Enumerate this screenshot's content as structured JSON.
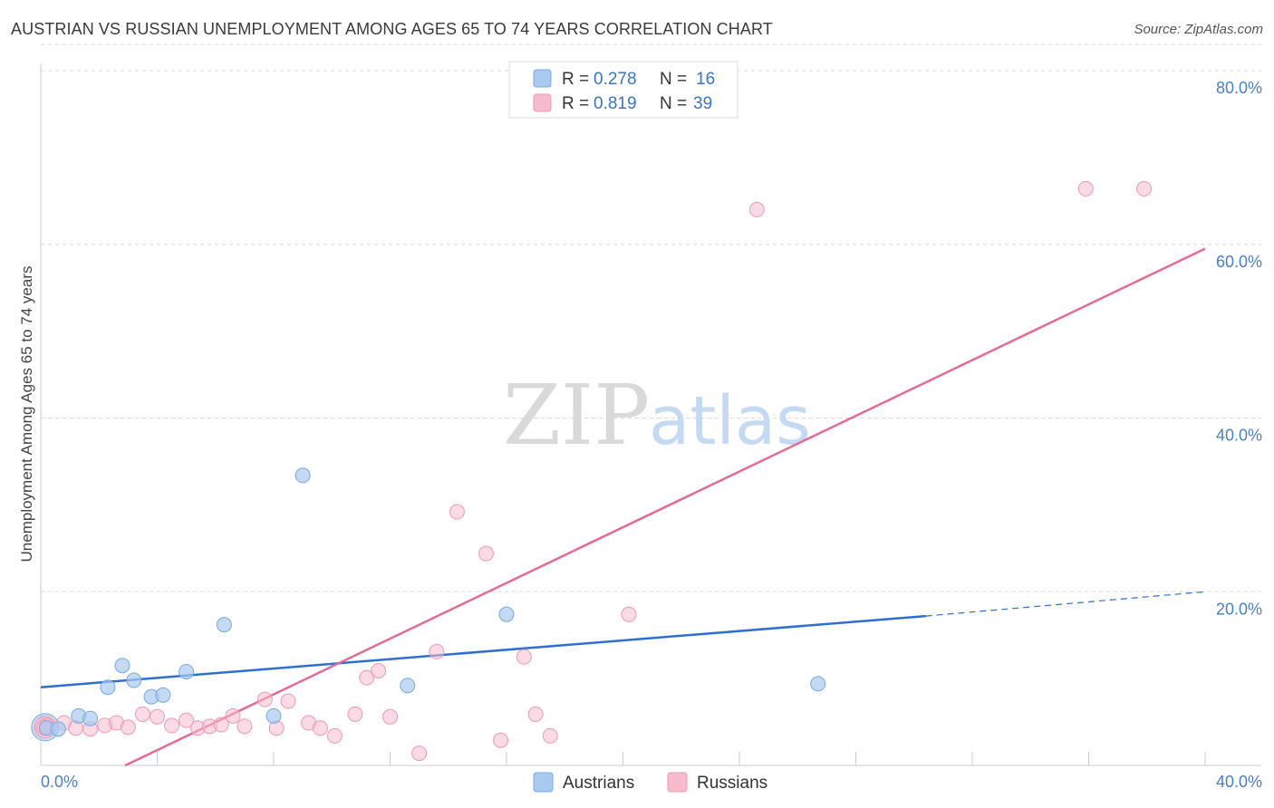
{
  "title": "AUSTRIAN VS RUSSIAN UNEMPLOYMENT AMONG AGES 65 TO 74 YEARS CORRELATION CHART",
  "source": "Source: ZipAtlas.com",
  "watermark": {
    "zip": "ZIP",
    "atlas": "atlas"
  },
  "colors": {
    "austrians_fill": "#a9c9f0",
    "austrians_stroke": "#7aa8e0",
    "austrians_line": "#2f6fce",
    "russians_fill": "#f6bccd",
    "russians_stroke": "#ee99b3",
    "russians_line": "#e56b97",
    "grid": "#d8d8d8",
    "tick_text": "#4a7fc9"
  },
  "legend": {
    "austrians": {
      "r_label": "R =",
      "r_value": "0.278",
      "n_label": "N =",
      "n_value": "16"
    },
    "russians": {
      "r_label": "R =",
      "r_value": "0.819",
      "n_label": "N =",
      "n_value": "39"
    }
  },
  "chart_data": {
    "type": "scatter",
    "ylabel": "Unemployment Among Ages 65 to 74 years",
    "xlabel": "",
    "xlim": [
      0,
      40
    ],
    "ylim": [
      0,
      80
    ],
    "x_tick_labels": [
      "0.0%",
      "40.0%"
    ],
    "y_ticks": [
      {
        "value": 20,
        "label": "20.0%"
      },
      {
        "value": 40,
        "label": "40.0%"
      },
      {
        "value": 60,
        "label": "60.0%"
      },
      {
        "value": 80,
        "label": "80.0%"
      }
    ],
    "grid": "horizontal dashed",
    "series": [
      {
        "name": "Austrians",
        "points": [
          [
            0.2,
            4.3
          ],
          [
            0.6,
            4.2
          ],
          [
            1.3,
            5.7
          ],
          [
            1.7,
            5.4
          ],
          [
            2.3,
            9.0
          ],
          [
            2.8,
            11.5
          ],
          [
            3.2,
            9.8
          ],
          [
            3.8,
            7.9
          ],
          [
            4.2,
            8.1
          ],
          [
            5.0,
            10.8
          ],
          [
            6.3,
            16.2
          ],
          [
            8.0,
            5.7
          ],
          [
            9.0,
            33.4
          ],
          [
            12.6,
            9.2
          ],
          [
            16.0,
            17.4
          ],
          [
            26.7,
            9.4
          ]
        ],
        "trend": {
          "x0": 0,
          "y0": 9.0,
          "x1": 30.4,
          "y1": 17.2,
          "dash_x1": 40,
          "dash_y1": 20.0
        }
      },
      {
        "name": "Russians",
        "points": [
          [
            0.2,
            4.6
          ],
          [
            0.8,
            4.9
          ],
          [
            1.2,
            4.3
          ],
          [
            1.7,
            4.2
          ],
          [
            2.2,
            4.6
          ],
          [
            2.6,
            4.9
          ],
          [
            3.0,
            4.4
          ],
          [
            3.5,
            5.9
          ],
          [
            4.0,
            5.6
          ],
          [
            4.5,
            4.6
          ],
          [
            5.0,
            5.2
          ],
          [
            5.4,
            4.3
          ],
          [
            5.8,
            4.5
          ],
          [
            6.2,
            4.7
          ],
          [
            6.6,
            5.7
          ],
          [
            7.0,
            4.5
          ],
          [
            7.7,
            7.6
          ],
          [
            8.1,
            4.3
          ],
          [
            8.5,
            7.4
          ],
          [
            9.2,
            4.9
          ],
          [
            9.6,
            4.3
          ],
          [
            10.1,
            3.4
          ],
          [
            10.8,
            5.9
          ],
          [
            11.2,
            10.1
          ],
          [
            11.6,
            10.9
          ],
          [
            12.0,
            5.6
          ],
          [
            13.0,
            1.4
          ],
          [
            13.6,
            13.1
          ],
          [
            14.3,
            29.2
          ],
          [
            15.3,
            24.4
          ],
          [
            15.8,
            2.9
          ],
          [
            16.6,
            12.5
          ],
          [
            17.0,
            5.9
          ],
          [
            17.5,
            3.4
          ],
          [
            20.2,
            17.4
          ],
          [
            24.6,
            64.0
          ],
          [
            35.9,
            66.4
          ],
          [
            37.9,
            66.4
          ],
          [
            0.1,
            4.4
          ]
        ],
        "trend": {
          "x0": 2.9,
          "y0": 0,
          "x1": 40,
          "y1": 59.5
        }
      }
    ]
  },
  "bottom_legend": {
    "austrians": "Austrians",
    "russians": "Russians"
  }
}
